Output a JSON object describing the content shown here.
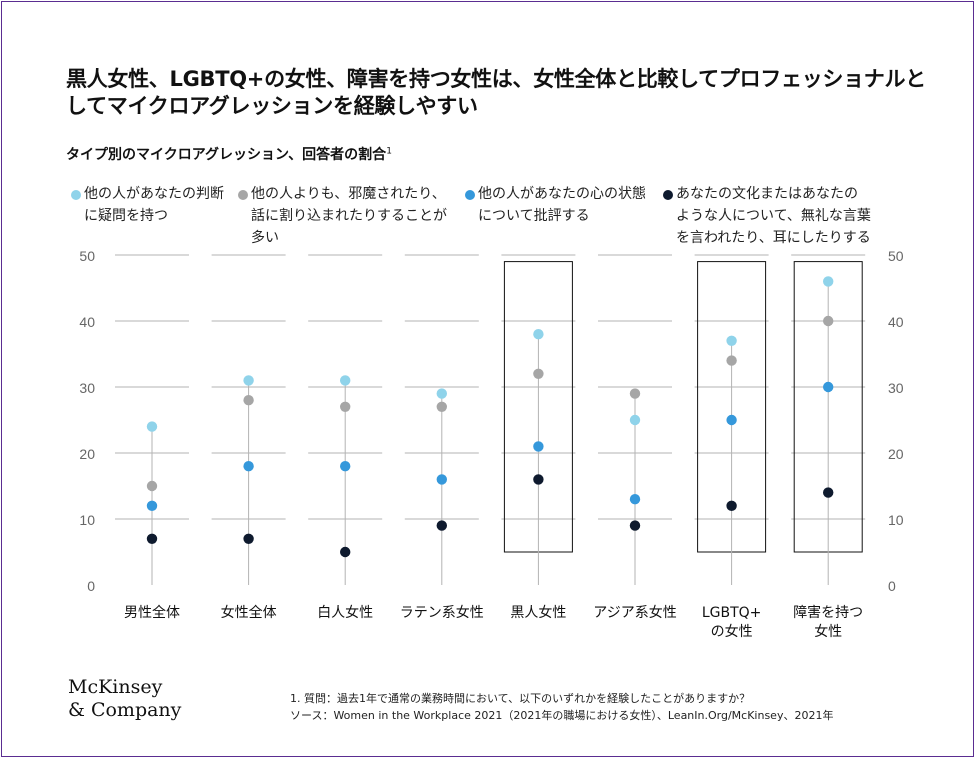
{
  "title": "黒人女性、LGBTQ+の女性、障害を持つ女性は、女性全体と比較してプロフェッショナルとしてマイクロアグレッションを経験しやすい",
  "subtitle": "タイプ別のマイクロアグレッション、回答者の割合",
  "subtitle_note": "1",
  "footnote": "1. 質問：過去1年で通常の業務時間において、以下のいずれかを経験したことがありますか？",
  "source": "ソース：Women in the Workplace 2021（2021年の職場における女性）、LeanIn.Org/McKinsey、2021年",
  "logo": {
    "line1": "McKinsey",
    "line2": "& Company"
  },
  "colors": {
    "light_blue": "#8fd3ea",
    "gray": "#a6a6a6",
    "blue": "#3598db",
    "navy": "#0e1a2e",
    "grid": "#b3b3b3",
    "axis_text": "#666666",
    "frame": "#5a2d91"
  },
  "chart_data": {
    "type": "scatter",
    "ylim": [
      0,
      50
    ],
    "yticks": [
      0,
      10,
      20,
      30,
      40,
      50
    ],
    "grid": true,
    "categories": [
      "男性全体",
      "女性全体",
      "白人女性",
      "ラテン系女性",
      "黒人女性",
      "アジア系女性",
      "LGBTQ+\nの女性",
      "障害を持つ\n女性"
    ],
    "highlighted": [
      false,
      false,
      false,
      false,
      true,
      false,
      true,
      true
    ],
    "series": [
      {
        "name": "他の人があなたの判断に疑問を持つ",
        "color": "#8fd3ea",
        "values": [
          24,
          31,
          31,
          29,
          38,
          25,
          37,
          46
        ]
      },
      {
        "name": "他の人よりも、邪魔されたり、話に割り込まれたりすることが多い",
        "color": "#a6a6a6",
        "values": [
          15,
          28,
          27,
          27,
          32,
          29,
          34,
          40
        ]
      },
      {
        "name": "他の人があなたの心の状態について批評する",
        "color": "#3598db",
        "values": [
          12,
          18,
          18,
          16,
          21,
          13,
          25,
          30
        ]
      },
      {
        "name": "あなたの文化またはあなたのような人について、無礼な言葉を言われたり、耳にしたりする",
        "color": "#0e1a2e",
        "values": [
          7,
          7,
          5,
          9,
          16,
          9,
          12,
          14
        ]
      }
    ]
  }
}
